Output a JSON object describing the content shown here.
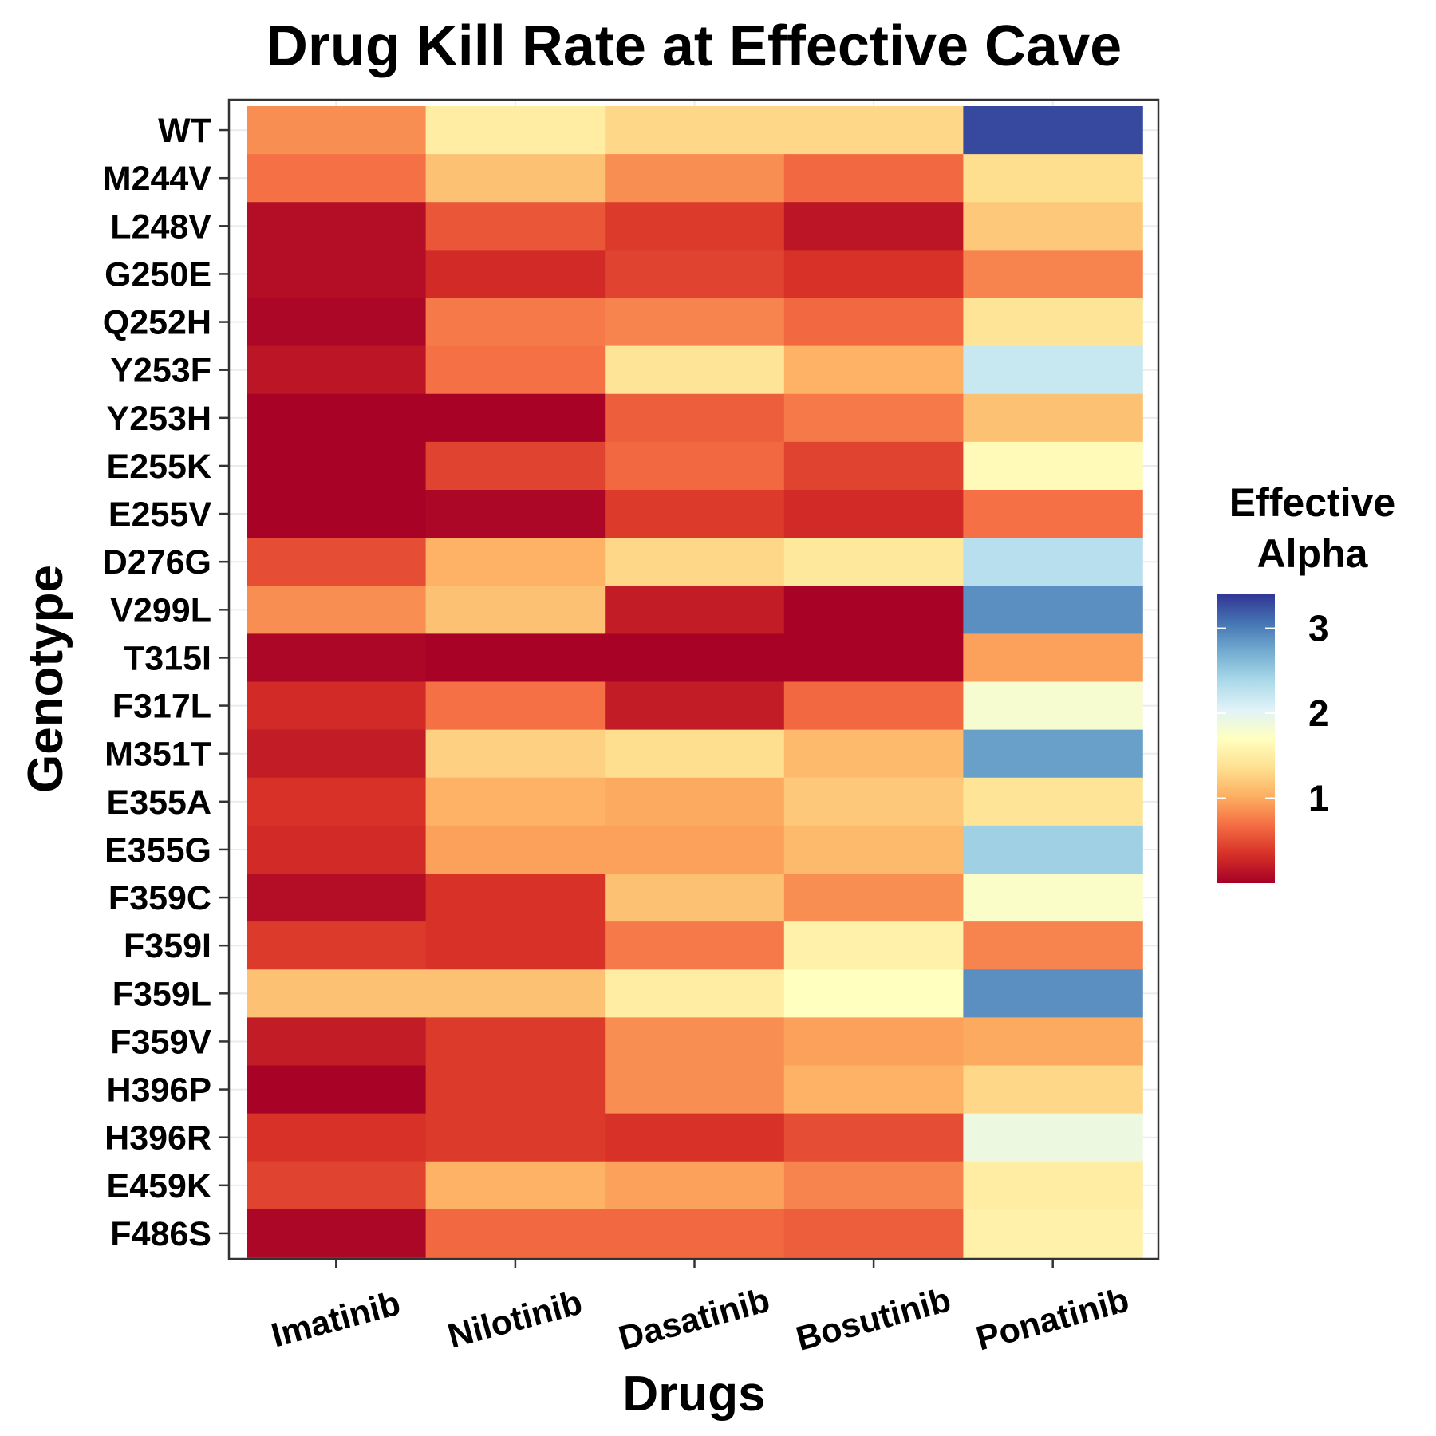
{
  "chart_data": {
    "type": "heatmap",
    "title": "Drug Kill Rate at Effective Cave",
    "xlabel": "Drugs",
    "ylabel": "Genotype",
    "x_categories": [
      "Imatinib",
      "Nilotinib",
      "Dasatinib",
      "Bosutinib",
      "Ponatinib"
    ],
    "y_categories": [
      "WT",
      "M244V",
      "L248V",
      "G250E",
      "Q252H",
      "Y253F",
      "Y253H",
      "E255K",
      "E255V",
      "D276G",
      "V299L",
      "T315I",
      "F317L",
      "M351T",
      "E355A",
      "E355G",
      "F359C",
      "F359I",
      "F359L",
      "F359V",
      "H396P",
      "H396R",
      "E459K",
      "F486S"
    ],
    "values": [
      [
        0.85,
        1.5,
        1.3,
        1.3,
        3.3
      ],
      [
        0.7,
        1.15,
        0.85,
        0.65,
        1.35
      ],
      [
        0.1,
        0.55,
        0.4,
        0.15,
        1.2
      ],
      [
        0.1,
        0.3,
        0.45,
        0.35,
        0.8
      ],
      [
        0.05,
        0.75,
        0.8,
        0.65,
        1.4
      ],
      [
        0.15,
        0.7,
        1.4,
        1.05,
        2.2
      ],
      [
        0.02,
        0.02,
        0.6,
        0.75,
        1.15
      ],
      [
        0.02,
        0.45,
        0.65,
        0.45,
        1.65
      ],
      [
        0.02,
        0.05,
        0.4,
        0.3,
        0.7
      ],
      [
        0.5,
        1.05,
        1.3,
        1.45,
        2.3
      ],
      [
        0.85,
        1.15,
        0.2,
        0.02,
        2.9
      ],
      [
        0.05,
        0.02,
        0.02,
        0.02,
        0.95
      ],
      [
        0.3,
        0.7,
        0.2,
        0.65,
        1.8
      ],
      [
        0.2,
        1.25,
        1.35,
        1.1,
        2.8
      ],
      [
        0.35,
        1.05,
        1.0,
        1.2,
        1.4
      ],
      [
        0.3,
        0.95,
        0.95,
        1.1,
        2.45
      ],
      [
        0.1,
        0.35,
        1.15,
        0.85,
        1.75
      ],
      [
        0.4,
        0.35,
        0.75,
        1.55,
        0.8
      ],
      [
        1.15,
        1.15,
        1.5,
        1.7,
        2.9
      ],
      [
        0.2,
        0.4,
        0.85,
        0.95,
        1.0
      ],
      [
        0.02,
        0.4,
        0.85,
        1.05,
        1.3
      ],
      [
        0.35,
        0.4,
        0.35,
        0.5,
        1.9
      ],
      [
        0.45,
        1.05,
        0.95,
        0.8,
        1.5
      ],
      [
        0.05,
        0.65,
        0.65,
        0.6,
        1.55
      ]
    ],
    "legend": {
      "title_lines": [
        "Effective",
        "Alpha"
      ],
      "ticks": [
        1,
        2,
        3
      ],
      "ticks_text": [
        "1",
        "2",
        "3"
      ],
      "range": [
        0,
        3.4
      ],
      "placement": "right"
    },
    "colormap": [
      "#a50026",
      "#d73027",
      "#f46d43",
      "#fdae61",
      "#fee090",
      "#ffffbf",
      "#e0f3f8",
      "#abd9e9",
      "#74add1",
      "#4575b4",
      "#313695"
    ],
    "grid": true
  }
}
